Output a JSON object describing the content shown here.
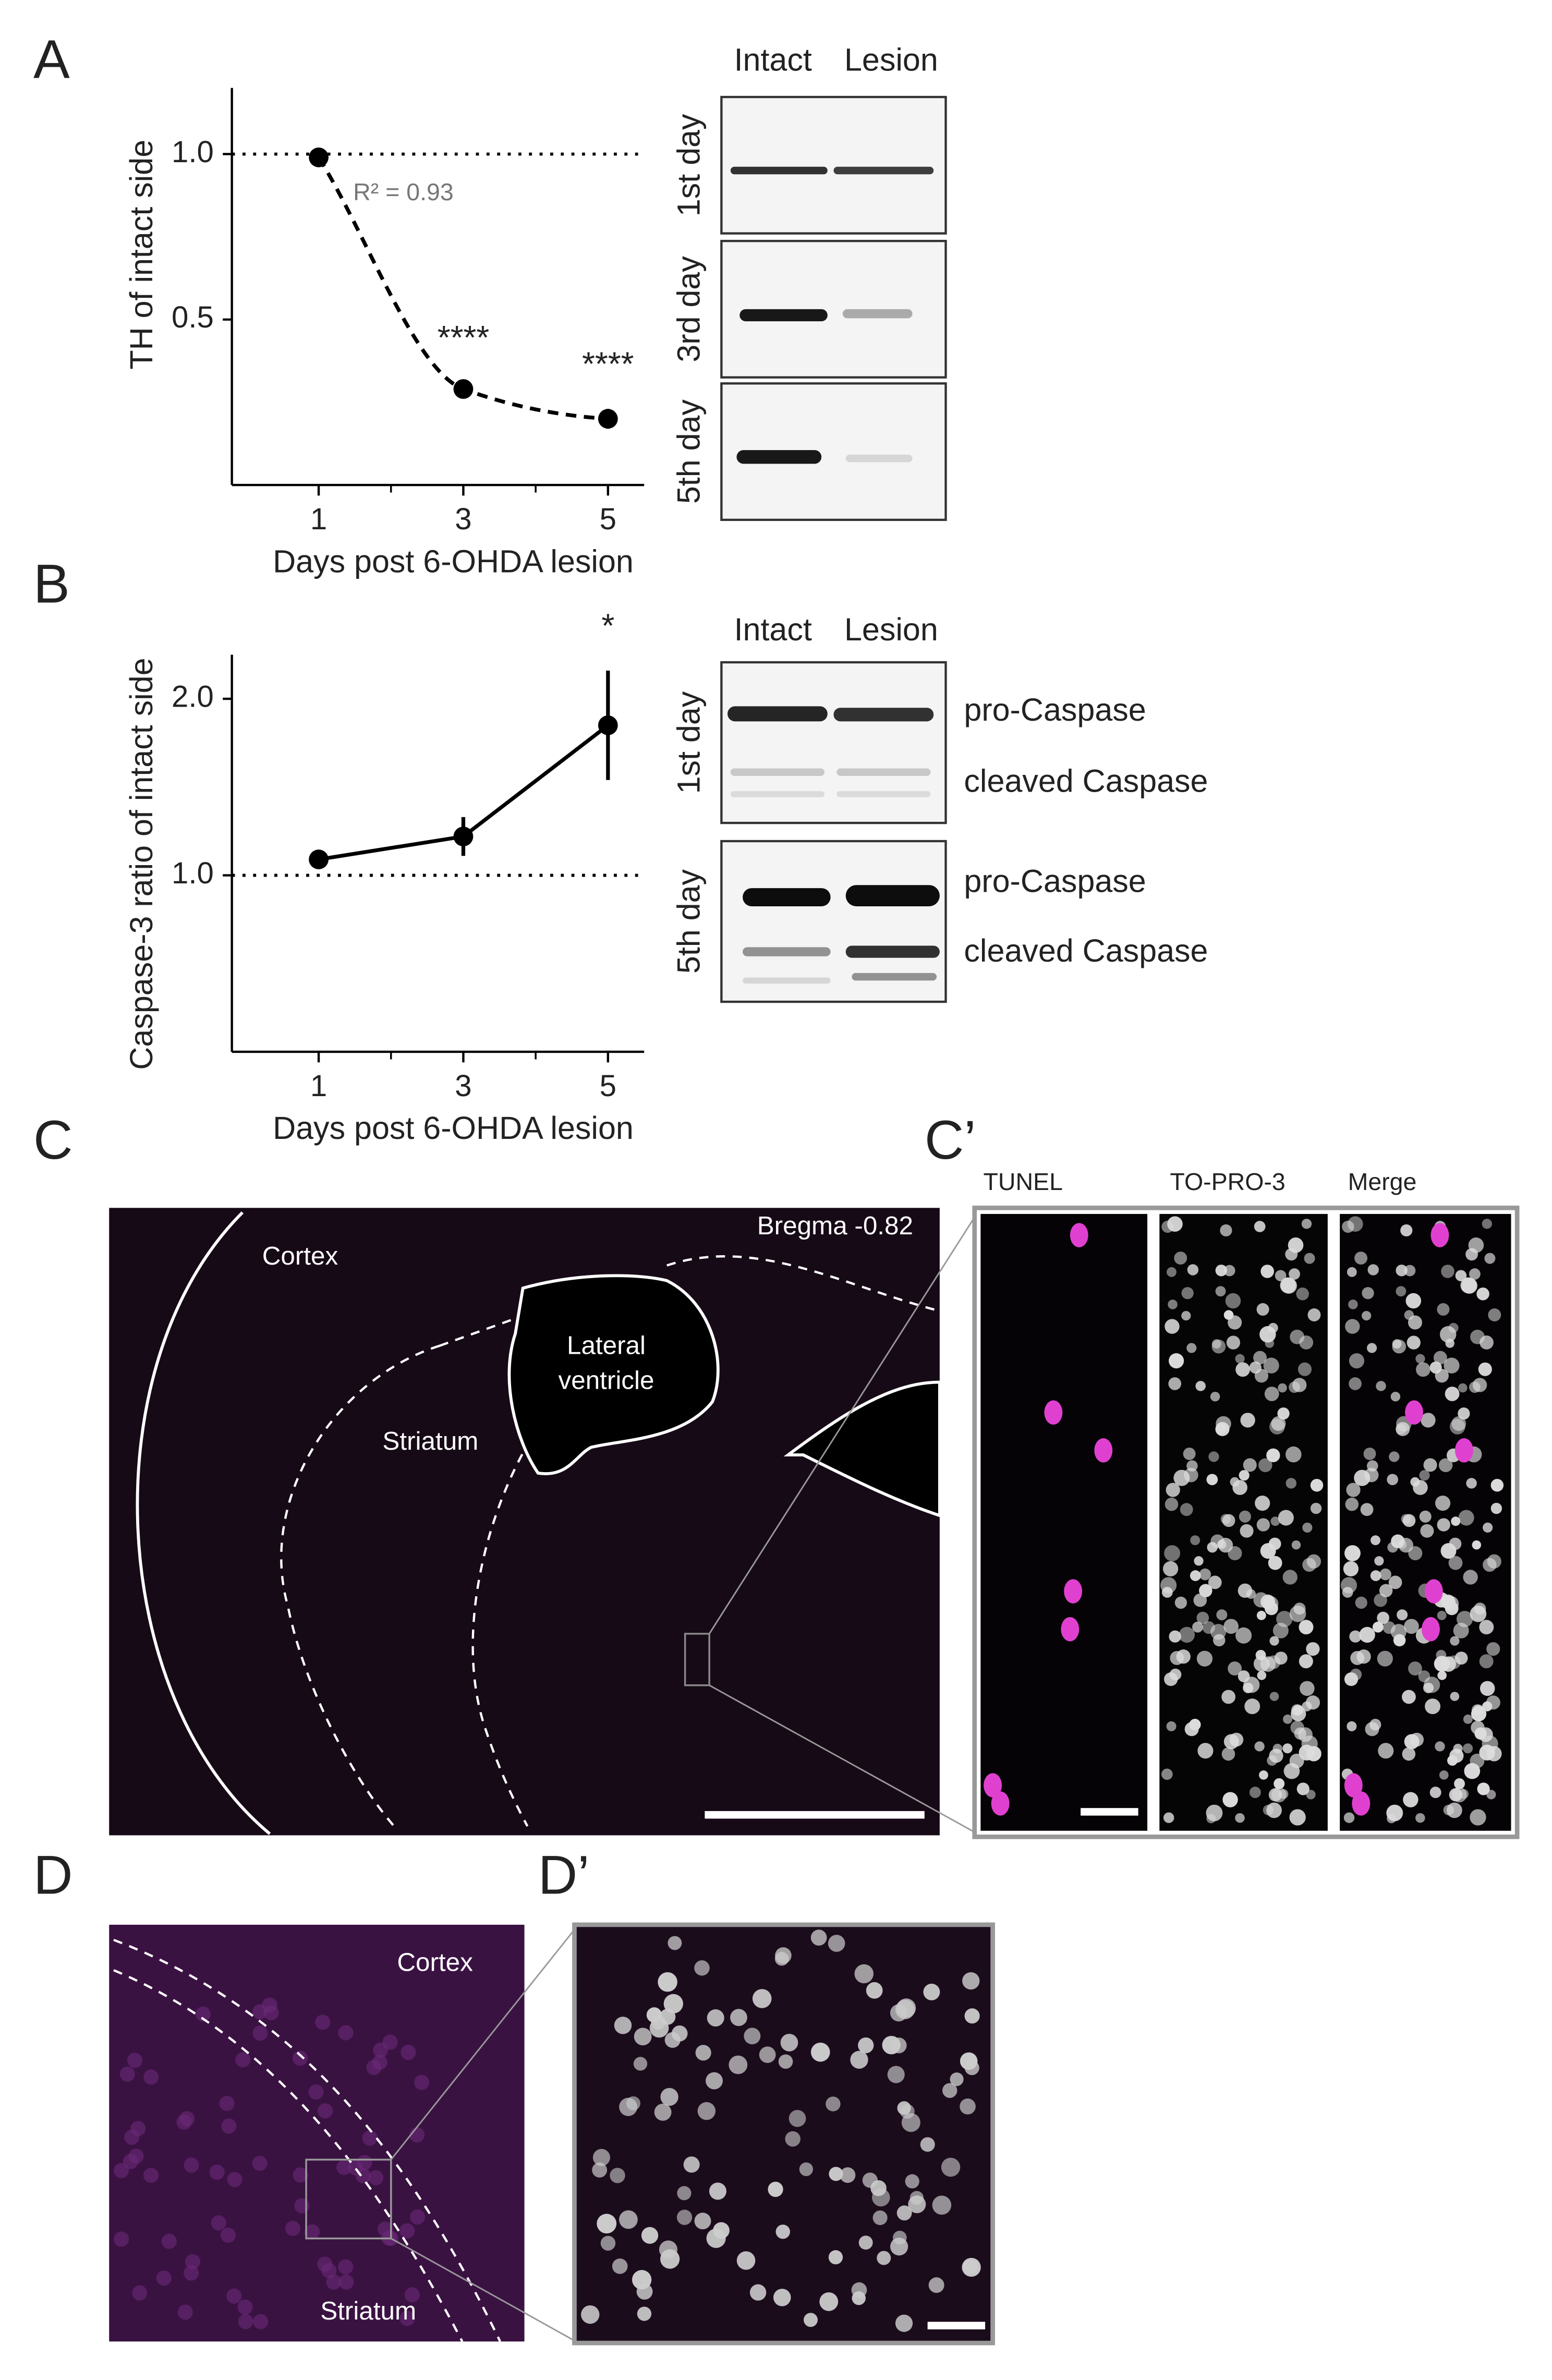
{
  "panel_labels": [
    "A",
    "B",
    "C",
    "C’",
    "D",
    "D’"
  ],
  "chart_data": [
    {
      "type": "line",
      "x": [
        1,
        3,
        5
      ],
      "xlim": [
        -0.2,
        5.5
      ],
      "xticks": [
        1,
        3,
        5
      ],
      "minor_xticks": [
        2,
        4
      ],
      "ylim": [
        0,
        1.2
      ],
      "yticks": [
        0.5,
        {
          "value": 1,
          "label": "1.0"
        }
      ],
      "xlabel": "Days post 6-OHDA lesion",
      "ylabel": "TH of intact side",
      "series": [
        {
          "values": [
            0.99,
            0.29,
            0.2
          ],
          "errors": [
            0.02,
            0.02,
            0.03
          ],
          "color": "#000000",
          "line_style": "dashed",
          "smooth": true
        }
      ],
      "reference_line": {
        "value": 1,
        "style": "dotted"
      },
      "annotations": [
        {
          "text": "R² = 0.93"
        },
        {
          "text": "****",
          "x": 3
        },
        {
          "text": "****",
          "x": 5
        }
      ]
    },
    {
      "type": "line",
      "x": [
        1,
        3,
        5
      ],
      "xlim": [
        -0.2,
        5.5
      ],
      "xticks": [
        1,
        3,
        5
      ],
      "minor_xticks": [
        2,
        4
      ],
      "ylim": [
        0,
        2.25
      ],
      "yticks": [
        {
          "value": 1,
          "label": "1.0"
        },
        {
          "value": 2,
          "label": "2.0"
        }
      ],
      "xlabel": "Days post 6-OHDA lesion",
      "ylabel": "Caspase-3 ratio of intact side",
      "series": [
        {
          "values": [
            1.09,
            1.22,
            1.85
          ],
          "errors": [
            0.03,
            0.11,
            0.31
          ],
          "color": "#000000",
          "line_style": "solid",
          "smooth": false
        }
      ],
      "reference_line": {
        "value": 1,
        "style": "dotted"
      },
      "annotations": [
        {
          "text": "*",
          "x": 5
        }
      ]
    }
  ],
  "blots_a": {
    "columns": [
      "Intact",
      "Lesion"
    ],
    "rows": [
      "1st day",
      "3rd day",
      "5th day"
    ]
  },
  "blots_b": {
    "columns": [
      "Intact",
      "Lesion"
    ],
    "rows": [
      "1st day",
      "5th day"
    ],
    "bands": [
      "pro-Caspase",
      "cleaved Caspase"
    ]
  },
  "micrograph_c": {
    "cortex": "Cortex",
    "lateral_ventricle": [
      "Lateral",
      "ventricle"
    ],
    "striatum": "Striatum",
    "bregma": "Bregma -0.82"
  },
  "micrograph_c_prime": {
    "channels": [
      "TUNEL",
      "TO-PRO-3",
      "Merge"
    ]
  },
  "micrograph_d": {
    "cortex": "Cortex",
    "striatum": "Striatum"
  }
}
